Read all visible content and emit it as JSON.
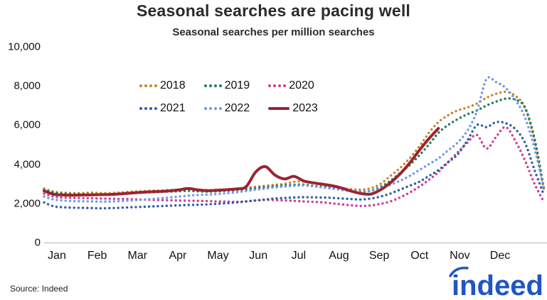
{
  "title": "Seasonal searches are pacing well",
  "subtitle": "Seasonal searches per million searches",
  "source": "Source: Indeed",
  "logo": {
    "text": "indeed",
    "color": "#2155c4"
  },
  "y_axis": {
    "ticks": [
      "10,000",
      "8,000",
      "6,000",
      "4,000",
      "2,000",
      "0"
    ],
    "tick_values": [
      10000,
      8000,
      6000,
      4000,
      2000,
      0
    ]
  },
  "x_axis": {
    "months": [
      "Jan",
      "Feb",
      "Mar",
      "Apr",
      "May",
      "Jun",
      "Jul",
      "Aug",
      "Sep",
      "Oct",
      "Nov",
      "Dec"
    ]
  },
  "legend": {
    "items": [
      {
        "label": "2018",
        "color": "#c9862b",
        "style": "dotted"
      },
      {
        "label": "2019",
        "color": "#1f7a68",
        "style": "dotted"
      },
      {
        "label": "2020",
        "color": "#d13d8f",
        "style": "dotted"
      },
      {
        "label": "2021",
        "color": "#2e5da8",
        "style": "dotted"
      },
      {
        "label": "2022",
        "color": "#7099e3",
        "style": "dotted"
      },
      {
        "label": "2023",
        "color": "#9a2530",
        "style": "solid"
      }
    ]
  },
  "chart_data": {
    "type": "line",
    "title": "Seasonal searches are pacing well",
    "subtitle": "Seasonal searches per million searches",
    "xlabel": "",
    "ylabel": "Seasonal searches per million searches",
    "ylim": [
      0,
      10000
    ],
    "grid": false,
    "legend_position": "inside-top-left",
    "x_unit": "day_of_year",
    "sampling": "weekly",
    "start_day": 1,
    "day_step": 7,
    "x_range_days": [
      1,
      365
    ],
    "series": [
      {
        "name": "2018",
        "color": "#c9862b",
        "line_style": "dotted",
        "values": [
          2750,
          2600,
          2550,
          2520,
          2530,
          2550,
          2520,
          2530,
          2560,
          2600,
          2620,
          2650,
          2660,
          2680,
          2700,
          2720,
          2700,
          2680,
          2700,
          2720,
          2750,
          2800,
          2850,
          2900,
          2950,
          3000,
          3100,
          3120,
          3050,
          2950,
          2850,
          2780,
          2720,
          2700,
          2780,
          3000,
          3400,
          3800,
          4300,
          4900,
          5600,
          6150,
          6500,
          6750,
          6900,
          7100,
          7400,
          7600,
          7700,
          7500,
          6900,
          5200,
          2600
        ]
      },
      {
        "name": "2019",
        "color": "#1f7a68",
        "line_style": "dotted",
        "values": [
          2700,
          2550,
          2500,
          2480,
          2470,
          2460,
          2450,
          2460,
          2480,
          2520,
          2550,
          2570,
          2590,
          2600,
          2620,
          2640,
          2620,
          2600,
          2620,
          2650,
          2680,
          2720,
          2780,
          2830,
          2880,
          2920,
          2950,
          2960,
          2900,
          2850,
          2800,
          2700,
          2630,
          2600,
          2650,
          2850,
          3150,
          3550,
          3950,
          4450,
          5000,
          5600,
          6000,
          6300,
          6550,
          6750,
          7000,
          7200,
          7350,
          7300,
          6900,
          5300,
          2700
        ]
      },
      {
        "name": "2020",
        "color": "#d13d8f",
        "line_style": "dotted",
        "values": [
          2500,
          2350,
          2300,
          2280,
          2270,
          2260,
          2250,
          2240,
          2230,
          2220,
          2200,
          2180,
          2170,
          2160,
          2150,
          2140,
          2130,
          2120,
          2100,
          2090,
          2080,
          2100,
          2150,
          2180,
          2170,
          2150,
          2130,
          2100,
          2080,
          2050,
          2000,
          1950,
          1900,
          1870,
          1900,
          1980,
          2100,
          2300,
          2550,
          2850,
          3200,
          3600,
          4100,
          4600,
          5100,
          5500,
          4800,
          5400,
          5900,
          5200,
          4200,
          3000,
          2050
        ]
      },
      {
        "name": "2021",
        "color": "#2e5da8",
        "line_style": "dotted",
        "values": [
          2050,
          1850,
          1800,
          1780,
          1770,
          1760,
          1750,
          1760,
          1780,
          1800,
          1820,
          1840,
          1860,
          1880,
          1900,
          1920,
          1930,
          1950,
          1980,
          2010,
          2050,
          2100,
          2150,
          2200,
          2250,
          2280,
          2300,
          2320,
          2310,
          2300,
          2280,
          2250,
          2220,
          2200,
          2250,
          2350,
          2500,
          2700,
          2900,
          3100,
          3400,
          3700,
          4100,
          4500,
          5200,
          6000,
          5900,
          6150,
          6100,
          5800,
          5100,
          3700,
          2400
        ]
      },
      {
        "name": "2022",
        "color": "#7099e3",
        "line_style": "dotted",
        "values": [
          2350,
          2200,
          2150,
          2120,
          2110,
          2100,
          2090,
          2100,
          2120,
          2150,
          2180,
          2220,
          2260,
          2300,
          2350,
          2400,
          2430,
          2450,
          2480,
          2520,
          2570,
          2630,
          2700,
          2760,
          2820,
          2860,
          2900,
          2920,
          2880,
          2820,
          2750,
          2680,
          2620,
          2600,
          2650,
          2780,
          2950,
          3150,
          3400,
          3700,
          4000,
          4300,
          4700,
          5100,
          5700,
          6700,
          8350,
          8200,
          7900,
          7300,
          6400,
          4800,
          2700
        ]
      },
      {
        "name": "2023",
        "color": "#9a2530",
        "line_style": "solid",
        "values": [
          2640,
          2470,
          2430,
          2420,
          2430,
          2440,
          2450,
          2460,
          2490,
          2530,
          2560,
          2590,
          2610,
          2640,
          2690,
          2760,
          2690,
          2650,
          2670,
          2700,
          2740,
          2850,
          3600,
          3880,
          3450,
          3250,
          3380,
          3150,
          3050,
          2980,
          2900,
          2780,
          2620,
          2500,
          2480,
          2700,
          3050,
          3500,
          4050,
          4700,
          5300,
          5830
        ]
      }
    ]
  }
}
